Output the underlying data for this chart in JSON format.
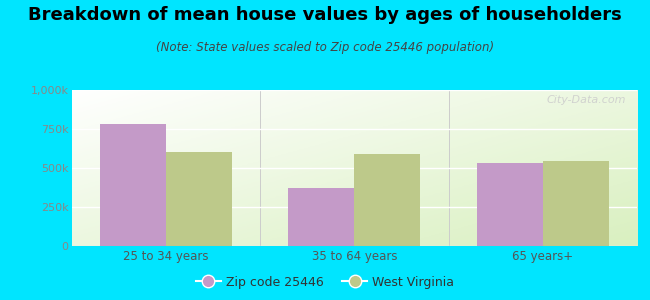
{
  "title": "Breakdown of mean house values by ages of householders",
  "subtitle": "(Note: State values scaled to Zip code 25446 population)",
  "categories": [
    "25 to 34 years",
    "35 to 64 years",
    "65 years+"
  ],
  "zip_values": [
    780000,
    370000,
    530000
  ],
  "state_values": [
    600000,
    590000,
    545000
  ],
  "zip_color": "#c49ac8",
  "state_color": "#bdc98a",
  "background_outer": "#00e5ff",
  "ylim": [
    0,
    1000000
  ],
  "yticks": [
    0,
    250000,
    500000,
    750000,
    1000000
  ],
  "ytick_labels": [
    "0",
    "250k",
    "500k",
    "750k",
    "1,000k"
  ],
  "legend_zip_label": "Zip code 25446",
  "legend_state_label": "West Virginia",
  "watermark": "City-Data.com",
  "title_fontsize": 13,
  "subtitle_fontsize": 8.5,
  "bar_width": 0.35,
  "tick_color": "#888888",
  "label_color": "#555555"
}
